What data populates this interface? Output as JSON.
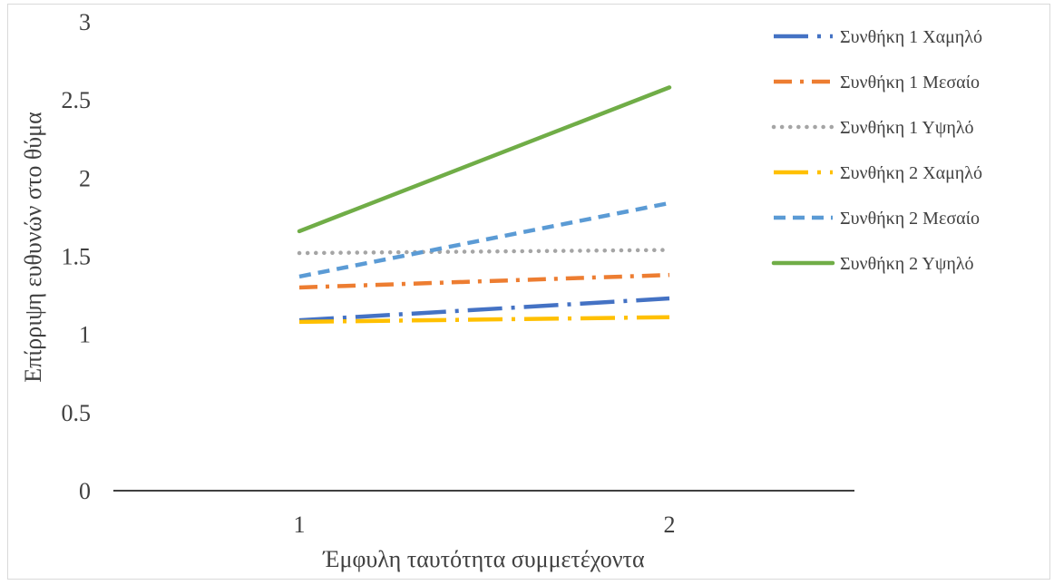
{
  "chart_data": {
    "type": "line",
    "title": "",
    "xlabel": "Έμφυλη ταυτότητα συμμετέχοντα",
    "ylabel": "Επίρριψη ευθυνών στο θύμα",
    "x": [
      "1",
      "2"
    ],
    "ylim": [
      0,
      3
    ],
    "yticks": [
      "0",
      "0.5",
      "1",
      "1.5",
      "2",
      "2.5",
      "3"
    ],
    "grid": false,
    "legend_position": "right",
    "series": [
      {
        "name": "Συνθήκη 1 Χαμηλό",
        "values": [
          1.09,
          1.23
        ],
        "color": "#4472C4",
        "style": "long-dash-dot"
      },
      {
        "name": "Συνθήκη 1 Μεσαίο",
        "values": [
          1.3,
          1.38
        ],
        "color": "#ED7D31",
        "style": "dash-dot"
      },
      {
        "name": "Συνθήκη 1 Υψηλό",
        "values": [
          1.52,
          1.54
        ],
        "color": "#A5A5A5",
        "style": "dotted"
      },
      {
        "name": "Συνθήκη 2 Χαμηλό",
        "values": [
          1.08,
          1.11
        ],
        "color": "#FFC000",
        "style": "long-dash-dot"
      },
      {
        "name": "Συνθήκη 2 Μεσαίο",
        "values": [
          1.37,
          1.84
        ],
        "color": "#5B9BD5",
        "style": "dashed"
      },
      {
        "name": "Συνθήκη 2 Υψηλό",
        "values": [
          1.66,
          2.58
        ],
        "color": "#70AD47",
        "style": "solid"
      }
    ]
  }
}
